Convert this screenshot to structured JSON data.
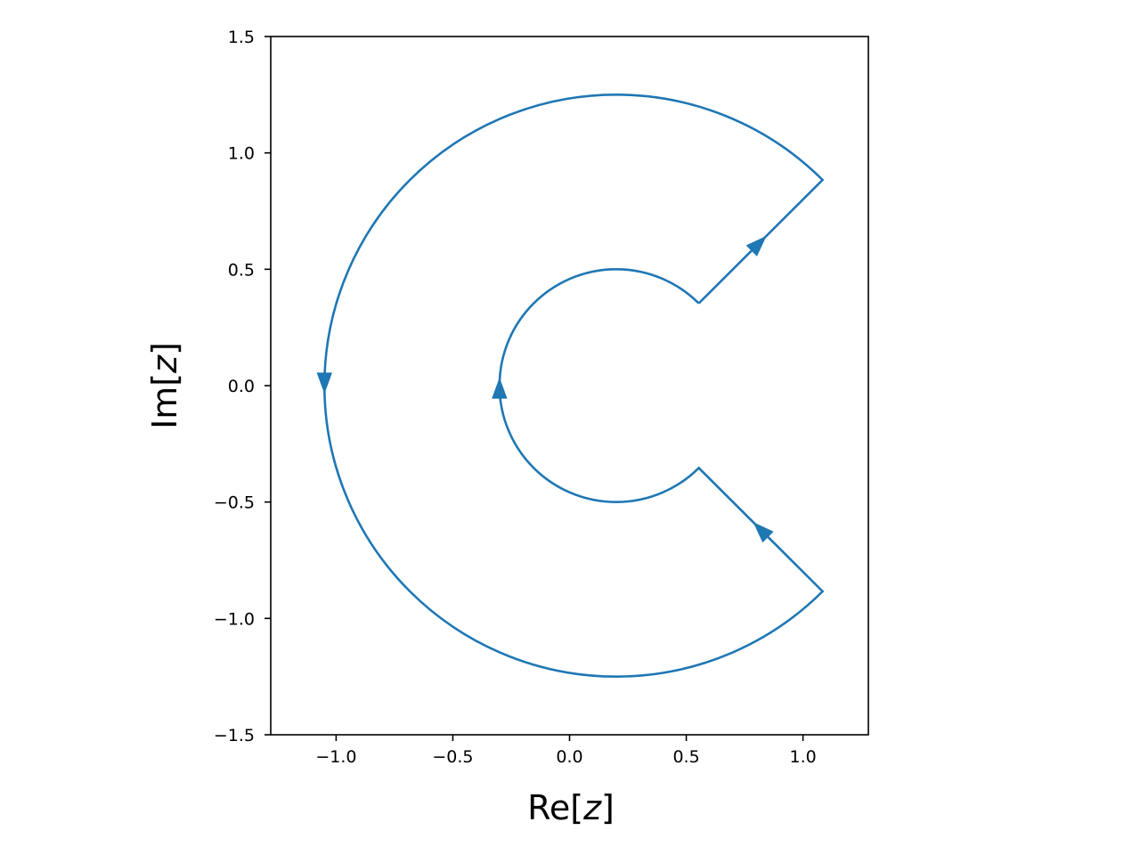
{
  "chart_data": {
    "type": "line",
    "title": "",
    "xlabel": {
      "prefix": "Re[",
      "var": "z",
      "suffix": "]"
    },
    "ylabel": {
      "prefix": "Im[",
      "var": "z",
      "suffix": "]"
    },
    "xlim": [
      -1.28,
      1.28
    ],
    "ylim": [
      -1.5,
      1.5
    ],
    "xticks": [
      -1.0,
      -0.5,
      0.0,
      0.5,
      1.0
    ],
    "xtick_labels": [
      "−1.0",
      "−0.5",
      "0.0",
      "0.5",
      "1.0"
    ],
    "yticks": [
      -1.5,
      -1.0,
      -0.5,
      0.0,
      0.5,
      1.0,
      1.5
    ],
    "ytick_labels": [
      "−1.5",
      "−1.0",
      "−0.5",
      "0.0",
      "0.5",
      "1.0",
      "1.5"
    ],
    "grid": false,
    "aspect": "equal",
    "series": [
      {
        "kind": "keyhole-contour",
        "center": [
          0.2,
          0.0
        ],
        "outer_radius": 1.25,
        "inner_radius": 0.5,
        "cut_angle_deg": 45,
        "arrows": [
          {
            "on": "upper-segment",
            "direction": "outward",
            "at": [
              0.84,
              0.64
            ]
          },
          {
            "on": "outer-arc",
            "direction": "down",
            "at": [
              -1.05,
              -0.03
            ]
          },
          {
            "on": "lower-segment",
            "direction": "inward",
            "at": [
              0.79,
              -0.59
            ]
          },
          {
            "on": "inner-arc",
            "direction": "up",
            "at": [
              -0.3,
              0.03
            ]
          }
        ]
      }
    ],
    "color": "#1f77b4"
  }
}
